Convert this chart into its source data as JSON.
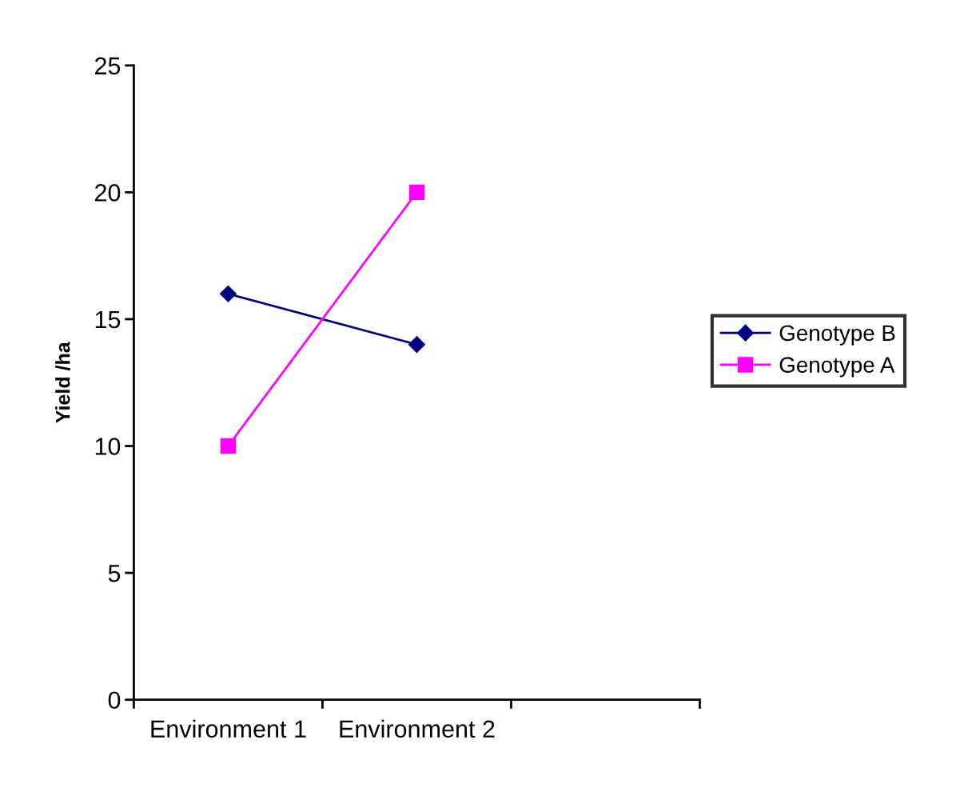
{
  "chart_data": {
    "type": "line",
    "ylabel": "Yield /ha",
    "categories": [
      "Environment 1",
      "Environment 2",
      null
    ],
    "series": [
      {
        "name": "Genotype B",
        "color": "#000080",
        "values": [
          16,
          14,
          null
        ],
        "marker": "diamond"
      },
      {
        "name": "Genotype A",
        "color": "#ff00ff",
        "values": [
          10,
          20,
          null
        ],
        "marker": "square"
      }
    ],
    "ylim": [
      0,
      25
    ],
    "yticks": [
      0,
      5,
      10,
      15,
      20,
      25
    ],
    "grid": false,
    "legend": "right",
    "line_style": "solid"
  }
}
